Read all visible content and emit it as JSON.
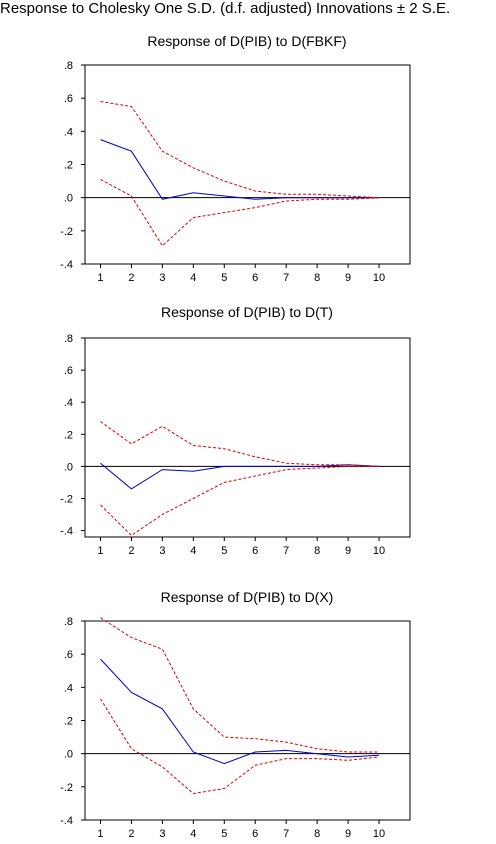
{
  "title": "Response to Cholesky One S.D. (d.f. adjusted) Innovations ± 2 S.E.",
  "colors": {
    "response": "#0000cc",
    "band": "#dd0000",
    "axis": "#000000"
  },
  "chart_data": [
    {
      "type": "line",
      "title": "Response of D(PIB) to D(FBKF)",
      "x": [
        1,
        2,
        3,
        4,
        5,
        6,
        7,
        8,
        9,
        10
      ],
      "ylim": [
        -0.4,
        0.8
      ],
      "yticks": [
        ".8",
        ".6",
        ".4",
        ".2",
        ".0",
        "-.2",
        "-.4"
      ],
      "ytick_values": [
        0.8,
        0.6,
        0.4,
        0.2,
        0.0,
        -0.2,
        -0.4
      ],
      "xticks": [
        "1",
        "2",
        "3",
        "4",
        "5",
        "6",
        "7",
        "8",
        "9",
        "10"
      ],
      "series": [
        {
          "role": "response",
          "values": [
            0.35,
            0.28,
            -0.01,
            0.03,
            0.01,
            -0.01,
            0.0,
            0.0,
            0.0,
            0.0
          ]
        },
        {
          "role": "upper",
          "values": [
            0.58,
            0.55,
            0.28,
            0.18,
            0.1,
            0.04,
            0.02,
            0.02,
            0.01,
            0.0
          ]
        },
        {
          "role": "lower",
          "values": [
            0.11,
            0.01,
            -0.29,
            -0.12,
            -0.09,
            -0.06,
            -0.02,
            -0.01,
            -0.01,
            0.0
          ]
        }
      ]
    },
    {
      "type": "line",
      "title": "Response of D(PIB) to D(T)",
      "x": [
        1,
        2,
        3,
        4,
        5,
        6,
        7,
        8,
        9,
        10
      ],
      "ylim": [
        -0.44,
        0.8
      ],
      "yticks": [
        ".8",
        ".6",
        ".4",
        ".2",
        ".0",
        "-.2",
        "-.4"
      ],
      "ytick_values": [
        0.8,
        0.6,
        0.4,
        0.2,
        0.0,
        -0.2,
        -0.4
      ],
      "xticks": [
        "1",
        "2",
        "3",
        "4",
        "5",
        "6",
        "7",
        "8",
        "9",
        "10"
      ],
      "series": [
        {
          "role": "response",
          "values": [
            0.02,
            -0.14,
            -0.02,
            -0.03,
            0.0,
            0.0,
            0.0,
            0.0,
            0.01,
            0.0
          ]
        },
        {
          "role": "upper",
          "values": [
            0.28,
            0.14,
            0.25,
            0.13,
            0.11,
            0.06,
            0.02,
            0.01,
            0.01,
            0.0
          ]
        },
        {
          "role": "lower",
          "values": [
            -0.24,
            -0.43,
            -0.3,
            -0.2,
            -0.1,
            -0.06,
            -0.02,
            -0.01,
            0.0,
            0.0
          ]
        }
      ]
    },
    {
      "type": "line",
      "title": "Response of D(PIB) to D(X)",
      "x": [
        1,
        2,
        3,
        4,
        5,
        6,
        7,
        8,
        9,
        10
      ],
      "ylim": [
        -0.4,
        0.8
      ],
      "yticks": [
        ".8",
        ".6",
        ".4",
        ".2",
        ".0",
        "-.2",
        "-.4"
      ],
      "ytick_values": [
        0.8,
        0.6,
        0.4,
        0.2,
        0.0,
        -0.2,
        -0.4
      ],
      "xticks": [
        "1",
        "2",
        "3",
        "4",
        "5",
        "6",
        "7",
        "8",
        "9",
        "10"
      ],
      "series": [
        {
          "role": "response",
          "values": [
            0.57,
            0.37,
            0.27,
            0.01,
            -0.06,
            0.01,
            0.02,
            0.0,
            -0.02,
            -0.01
          ]
        },
        {
          "role": "upper",
          "values": [
            0.82,
            0.7,
            0.63,
            0.27,
            0.1,
            0.09,
            0.07,
            0.03,
            0.01,
            0.01
          ]
        },
        {
          "role": "lower",
          "values": [
            0.33,
            0.03,
            -0.08,
            -0.24,
            -0.21,
            -0.07,
            -0.03,
            -0.03,
            -0.04,
            -0.02
          ]
        }
      ]
    }
  ]
}
